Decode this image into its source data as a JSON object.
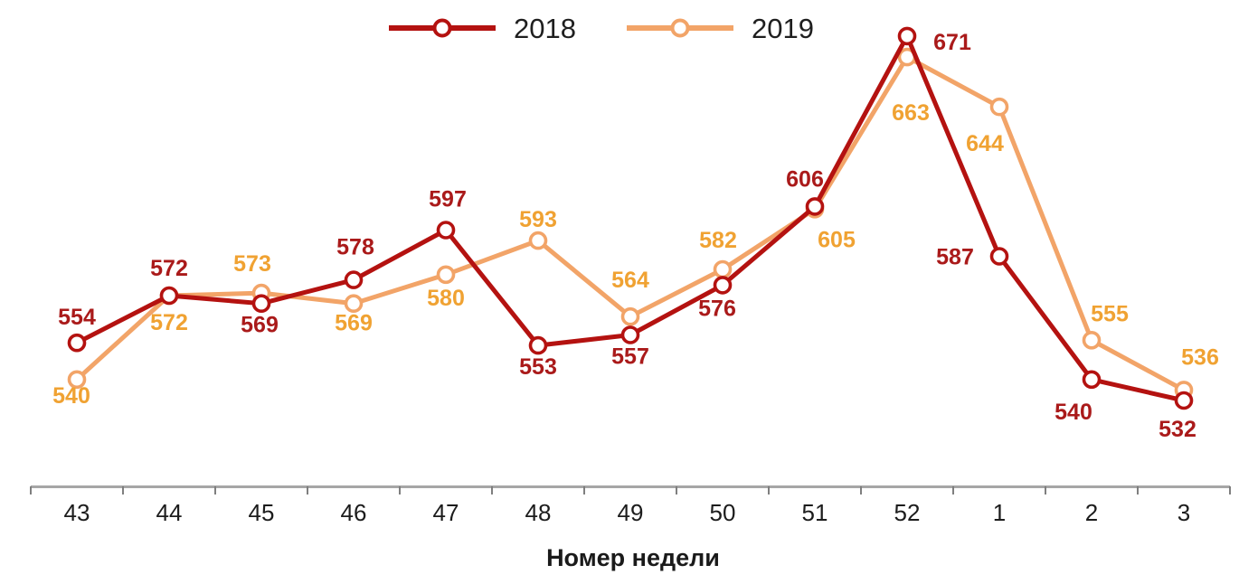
{
  "chart_data": {
    "type": "line",
    "title": "",
    "xlabel": "Номер недели",
    "ylabel": "",
    "categories": [
      "43",
      "44",
      "45",
      "46",
      "47",
      "48",
      "49",
      "50",
      "51",
      "52",
      "1",
      "2",
      "3"
    ],
    "series": [
      {
        "name": "2018",
        "color": "#B41210",
        "label_color": "#AA1A1A",
        "values": [
          554,
          572,
          569,
          578,
          597,
          553,
          557,
          576,
          606,
          671,
          587,
          540,
          532
        ],
        "label_offsets": [
          [
            0,
            -20
          ],
          [
            0,
            -22
          ],
          [
            -2,
            32
          ],
          [
            2,
            -28
          ],
          [
            2,
            -26
          ],
          [
            0,
            32
          ],
          [
            0,
            32
          ],
          [
            -6,
            34
          ],
          [
            -11,
            -22
          ],
          [
            50,
            15
          ],
          [
            -49,
            9
          ],
          [
            -20,
            44
          ],
          [
            -7,
            40
          ]
        ]
      },
      {
        "name": "2019",
        "color": "#F2A468",
        "label_color": "#F0A232",
        "values": [
          540,
          572,
          573,
          569,
          580,
          593,
          564,
          582,
          605,
          663,
          644,
          555,
          536
        ],
        "label_offsets": [
          [
            -6,
            26
          ],
          [
            0,
            38
          ],
          [
            -10,
            -24
          ],
          [
            0,
            30
          ],
          [
            0,
            34
          ],
          [
            0,
            -15
          ],
          [
            0,
            -32
          ],
          [
            -5,
            -24
          ],
          [
            24,
            42
          ],
          [
            4,
            70
          ],
          [
            -16,
            49
          ],
          [
            20,
            -21
          ],
          [
            18,
            -28
          ]
        ]
      }
    ],
    "ylim": [
      525,
      680
    ],
    "grid": false,
    "legend_position": "top",
    "marker": "open-circle",
    "axis_color": "#A6A6A6",
    "tick_color": "#7F7F7F",
    "tick_label_color": "#1C1C1C",
    "xlabel_color": "#1A1A1A",
    "legend_text_color": "#1F1F1F",
    "background_color": "#FFFFFF"
  }
}
